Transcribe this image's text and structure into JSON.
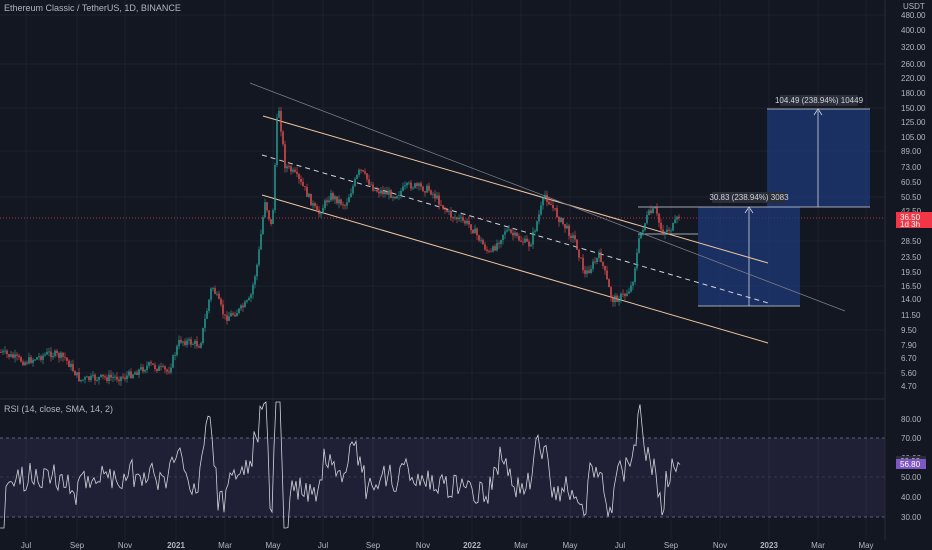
{
  "header": {
    "symbol_line": "Ethereum Classic / TetherUS, 1D, BINANCE"
  },
  "price_axis": {
    "currency": "USDT",
    "ticks": [
      "480.00",
      "400.00",
      "320.00",
      "260.00",
      "220.00",
      "180.00",
      "150.00",
      "125.00",
      "105.00",
      "89.00",
      "73.00",
      "60.50",
      "50.50",
      "42.50",
      "35.50",
      "28.50",
      "23.50",
      "19.50",
      "16.50",
      "14.00",
      "11.50",
      "9.50",
      "7.90",
      "6.70",
      "5.60",
      "4.70"
    ],
    "current_price_badge": "36.50",
    "current_price_sub": "1d 3h"
  },
  "rsi": {
    "label": "RSI (14, close, SMA, 14, 2)",
    "ticks": [
      "80.00",
      "70.00",
      "60.00",
      "50.00",
      "40.00",
      "30.00"
    ],
    "value_badge_top": "60.00",
    "value_badge_bottom": "56.80"
  },
  "time_axis": {
    "ticks": [
      "Jul",
      "Sep",
      "Nov",
      "2021",
      "Mar",
      "May",
      "Jul",
      "Sep",
      "Nov",
      "2022",
      "Mar",
      "May",
      "Jul",
      "Sep",
      "Nov",
      "2023",
      "Mar",
      "May"
    ]
  },
  "annotations": {
    "target_1": "30.83 (238.94%) 3083",
    "target_2": "104.49 (238.94%) 10449"
  },
  "colors": {
    "background": "#131722",
    "candle_up": "#26a69a",
    "candle_down": "#ef5350",
    "channel": "#f0c6a0",
    "projection_box": "#1e3a78",
    "rsi_band": "#7e57c2",
    "rsi_line": "#d1d4dc",
    "price_badge": "#f23645"
  }
}
